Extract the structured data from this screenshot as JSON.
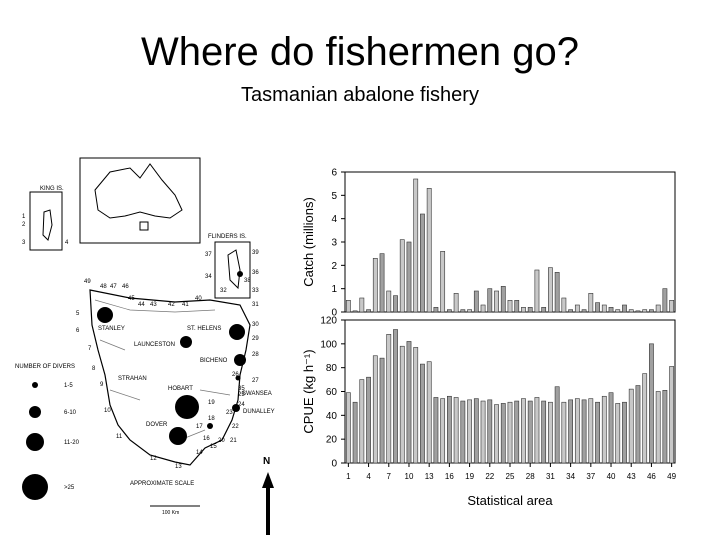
{
  "title": "Where do fishermen go?",
  "subtitle": "Tasmanian abalone fishery",
  "map": {
    "labels": {
      "king_is": "KING IS.",
      "flinders_is": "FLINDERS IS.",
      "stanley": "STANLEY",
      "launceston": "LAUNCESTON",
      "st_helens": "ST. HELENS",
      "bicheno": "BICHENO",
      "strahan": "STRAHAN",
      "hobart": "HOBART",
      "swansea": "SWANSEA",
      "dunalley": "DUNALLEY",
      "dover": "DOVER",
      "north": "N",
      "scale_label": "APPROXIMATE SCALE",
      "scale_value": "100 Km"
    },
    "legend": {
      "title": "NUMBER OF DIVERS",
      "items": [
        "1-5",
        "6-10",
        "11-20",
        ">25"
      ]
    },
    "area_numbers": [
      "1",
      "2",
      "3",
      "4",
      "5",
      "6",
      "7",
      "8",
      "9",
      "10",
      "11",
      "12",
      "13",
      "14",
      "15",
      "16",
      "17",
      "18",
      "19",
      "20",
      "21",
      "22",
      "23",
      "24",
      "25",
      "26",
      "27",
      "28",
      "29",
      "30",
      "31",
      "32",
      "33",
      "34",
      "35",
      "36",
      "37",
      "38",
      "39",
      "40",
      "41",
      "42",
      "43",
      "44",
      "45",
      "46",
      "47",
      "48",
      "49"
    ]
  },
  "chart_data": [
    {
      "type": "bar",
      "ylabel": "Catch (millions)",
      "ylim": [
        0,
        6
      ],
      "yticks": [
        0,
        1,
        2,
        3,
        4,
        5,
        6
      ],
      "xlabel": "",
      "categories": [
        "1",
        "2",
        "3",
        "4",
        "5",
        "6",
        "7",
        "8",
        "9",
        "10",
        "11",
        "12",
        "13",
        "14",
        "15",
        "16",
        "17",
        "18",
        "19",
        "20",
        "21",
        "22",
        "23",
        "24",
        "25",
        "26",
        "27",
        "28",
        "29",
        "30",
        "31",
        "32",
        "33",
        "34",
        "35",
        "36",
        "37",
        "38",
        "39",
        "40",
        "41",
        "42",
        "43",
        "44",
        "45",
        "46",
        "47",
        "48",
        "49"
      ],
      "values": [
        0.5,
        0.05,
        0.6,
        0.1,
        2.3,
        2.5,
        0.9,
        0.7,
        3.1,
        3.0,
        5.7,
        4.2,
        5.3,
        0.2,
        2.6,
        0.1,
        0.8,
        0.1,
        0.1,
        0.9,
        0.3,
        1.0,
        0.9,
        1.1,
        0.5,
        0.5,
        0.2,
        0.2,
        1.8,
        0.2,
        1.9,
        1.7,
        0.6,
        0.1,
        0.3,
        0.1,
        0.8,
        0.4,
        0.3,
        0.2,
        0.1,
        0.3,
        0.1,
        0.05,
        0.1,
        0.1,
        0.3,
        1.0,
        0.5
      ]
    },
    {
      "type": "bar",
      "ylabel": "CPUE (kg h⁻¹)",
      "ylim": [
        0,
        120
      ],
      "yticks": [
        0,
        20,
        40,
        60,
        80,
        100,
        120
      ],
      "xlabel": "Statistical area",
      "xticks": [
        "1",
        "4",
        "7",
        "10",
        "13",
        "16",
        "19",
        "22",
        "25",
        "28",
        "31",
        "34",
        "37",
        "40",
        "43",
        "46",
        "49"
      ],
      "categories": [
        "1",
        "2",
        "3",
        "4",
        "5",
        "6",
        "7",
        "8",
        "9",
        "10",
        "11",
        "12",
        "13",
        "14",
        "15",
        "16",
        "17",
        "18",
        "19",
        "20",
        "21",
        "22",
        "23",
        "24",
        "25",
        "26",
        "27",
        "28",
        "29",
        "30",
        "31",
        "32",
        "33",
        "34",
        "35",
        "36",
        "37",
        "38",
        "39",
        "40",
        "41",
        "42",
        "43",
        "44",
        "45",
        "46",
        "47",
        "48",
        "49"
      ],
      "values": [
        59,
        51,
        70,
        72,
        90,
        88,
        108,
        112,
        98,
        102,
        97,
        83,
        85,
        55,
        54,
        56,
        55,
        52,
        53,
        54,
        52,
        53,
        49,
        50,
        51,
        52,
        54,
        52,
        55,
        52,
        51,
        64,
        51,
        53,
        54,
        53,
        54,
        51,
        56,
        59,
        50,
        51,
        62,
        65,
        75,
        100,
        60,
        61,
        81
      ]
    }
  ]
}
